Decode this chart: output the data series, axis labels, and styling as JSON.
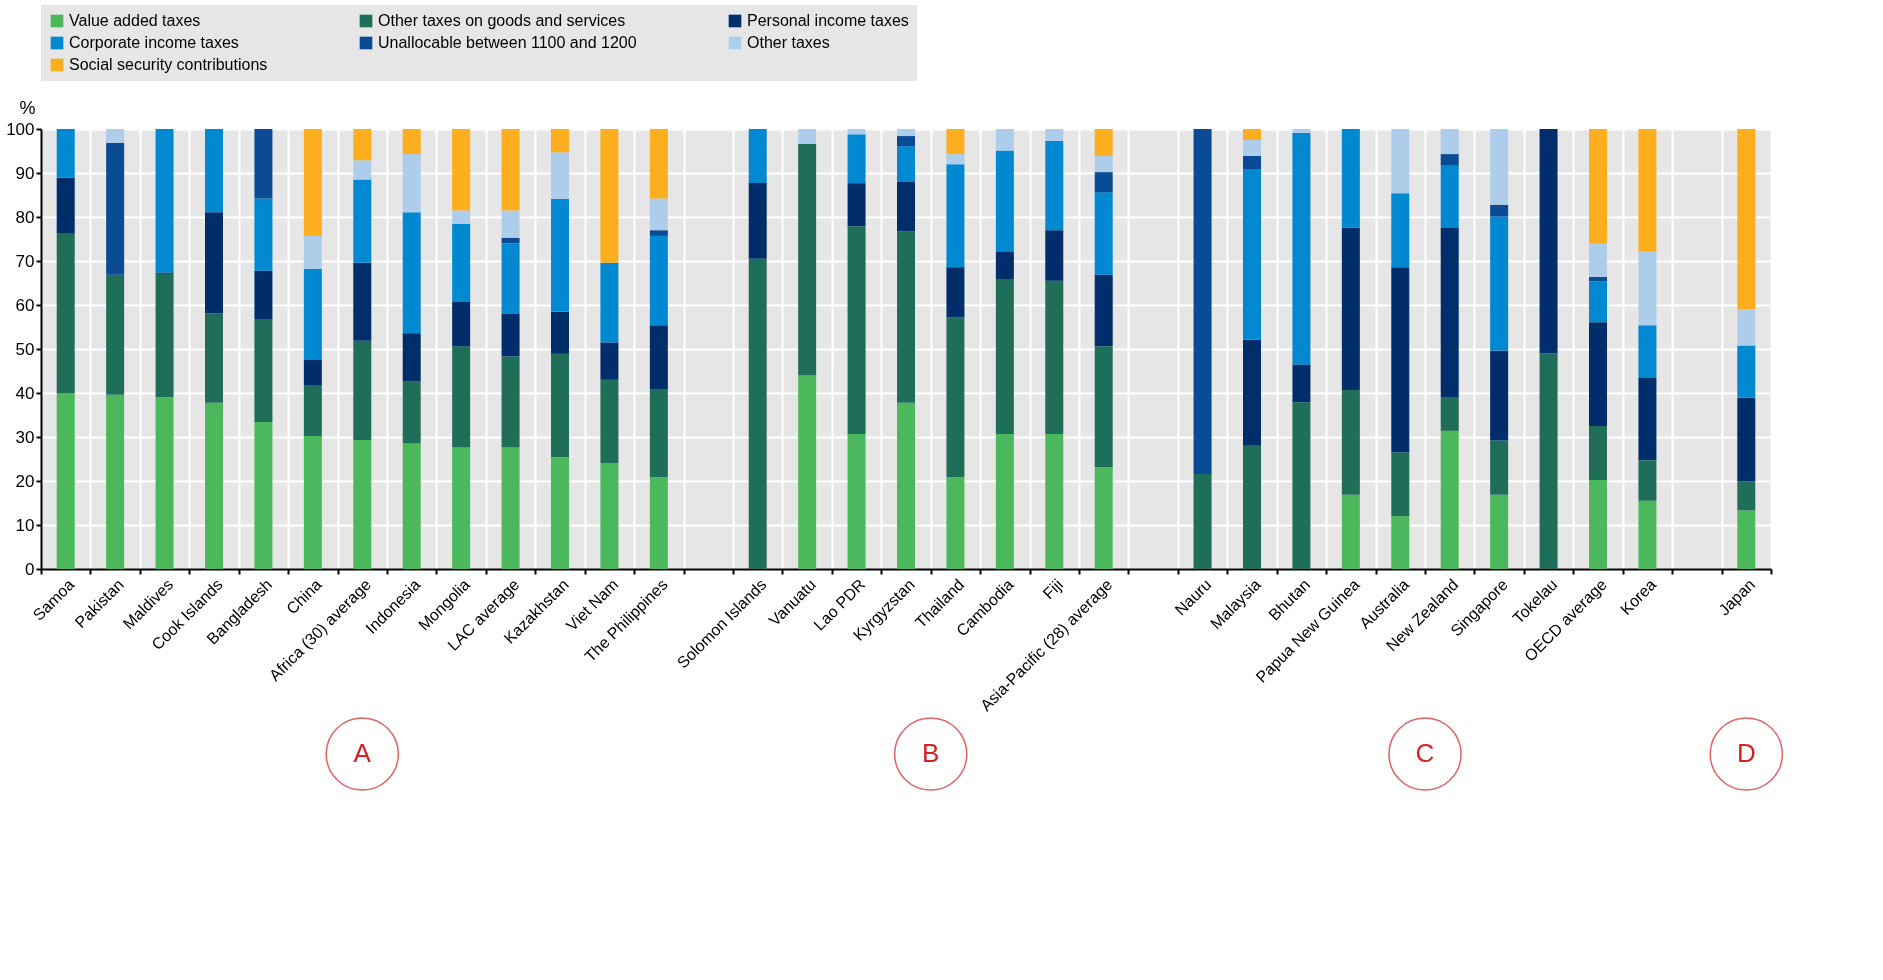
{
  "chart_data": {
    "type": "bar",
    "stacked": true,
    "ylabel": "%",
    "ylim": [
      0,
      100
    ],
    "yticks": [
      0,
      10,
      20,
      30,
      40,
      50,
      60,
      70,
      80,
      90,
      100
    ],
    "grid": true,
    "legend": "top",
    "categories": [
      "Samoa",
      "Pakistan",
      "Maldives",
      "Cook Islands",
      "Bangladesh",
      "China",
      "Africa (30) average",
      "Indonesia",
      "Mongolia",
      "LAC average",
      "Kazakhstan",
      "Viet Nam",
      "The Philippines",
      null,
      "Solomon Islands",
      "Vanuatu",
      "Lao PDR",
      "Kyrgyzstan",
      "Thailand",
      "Cambodia",
      "Fiji",
      "Asia-Pacific (28) average",
      null,
      "Nauru",
      "Malaysia",
      "Bhutan",
      "Papua New Guinea",
      "Australia",
      "New Zealand",
      "Singapore",
      "Tokelau",
      "OECD average",
      "Korea",
      null,
      "Japan"
    ],
    "series": [
      {
        "name": "Value added taxes",
        "color": "#4cb85c",
        "values": [
          40,
          39.6,
          39.1,
          37.8,
          33.4,
          30.2,
          29.3,
          28.5,
          27.6,
          27.6,
          25.4,
          24.1,
          20.9,
          null,
          null,
          44,
          30.7,
          37.8,
          20.9,
          30.7,
          30.7,
          23.1,
          null,
          null,
          null,
          null,
          16.9,
          12,
          31.4,
          16.9,
          null,
          20.2,
          15.5,
          null,
          13.3
        ]
      },
      {
        "name": "Other taxes on goods and services",
        "color": "#1f6e5a",
        "values": [
          36.2,
          27.3,
          28,
          20.3,
          23.4,
          11.6,
          22.6,
          14.1,
          23,
          20.7,
          23.5,
          18.9,
          20,
          null,
          70.5,
          52.6,
          47.2,
          38.9,
          36.3,
          35.2,
          34.8,
          27.5,
          null,
          21.6,
          28,
          37.9,
          23.8,
          14.5,
          7.5,
          12.3,
          49,
          12.3,
          9.2,
          null,
          6.6
        ]
      },
      {
        "name": "Personal income taxes",
        "color": "#002e6b",
        "values": [
          12.8,
          null,
          0.3,
          23,
          11,
          5.7,
          17.7,
          11,
          10.1,
          9.8,
          9.6,
          8.5,
          14.5,
          null,
          17.2,
          null,
          9.8,
          11.4,
          11.4,
          6.3,
          11.5,
          16.3,
          null,
          null,
          24.1,
          8.6,
          36.9,
          42.1,
          38.6,
          20.4,
          51,
          23.6,
          18.7,
          null,
          19
        ]
      },
      {
        "name": "Corporate income taxes",
        "color": "#0088d1",
        "values": [
          11,
          null,
          32.6,
          18.9,
          16.4,
          20.7,
          18.9,
          27.5,
          17.7,
          15.9,
          25.6,
          18.1,
          20.3,
          null,
          12.3,
          null,
          11.1,
          8,
          23.4,
          22.9,
          20.3,
          18.7,
          null,
          null,
          38.8,
          52.6,
          22.4,
          16.8,
          14.3,
          30.5,
          null,
          9.3,
          12,
          null,
          11.9
        ]
      },
      {
        "name": "Unallocable between 1100 and 1200",
        "color": "#0b4a94",
        "values": [
          null,
          30,
          null,
          null,
          15.8,
          null,
          null,
          null,
          null,
          1.3,
          null,
          null,
          1.3,
          null,
          null,
          null,
          null,
          2.3,
          null,
          null,
          null,
          4.6,
          null,
          78.4,
          3,
          null,
          null,
          null,
          2.5,
          2.7,
          null,
          1,
          null,
          null,
          null
        ]
      },
      {
        "name": "Other taxes",
        "color": "#aecdeb",
        "values": [
          null,
          3.1,
          null,
          null,
          null,
          7.5,
          4.4,
          13.2,
          3.1,
          6.2,
          10.6,
          null,
          7.2,
          null,
          null,
          3.4,
          1.2,
          1.6,
          2.3,
          4.9,
          2.7,
          3.7,
          null,
          null,
          3.6,
          0.9,
          null,
          14.6,
          5.7,
          17.2,
          null,
          7.5,
          16.7,
          null,
          8.3
        ]
      },
      {
        "name": "Social security contributions",
        "color": "#fcae1e",
        "values": [
          null,
          null,
          null,
          null,
          null,
          24.3,
          7.1,
          5.7,
          18.5,
          18.5,
          5.3,
          30.4,
          15.8,
          null,
          null,
          null,
          null,
          null,
          5.7,
          null,
          null,
          6.1,
          null,
          null,
          2.5,
          null,
          null,
          null,
          null,
          null,
          null,
          26.1,
          27.9,
          null,
          40.9
        ]
      }
    ],
    "annotations": [
      "A",
      "B",
      "C",
      "D"
    ]
  }
}
